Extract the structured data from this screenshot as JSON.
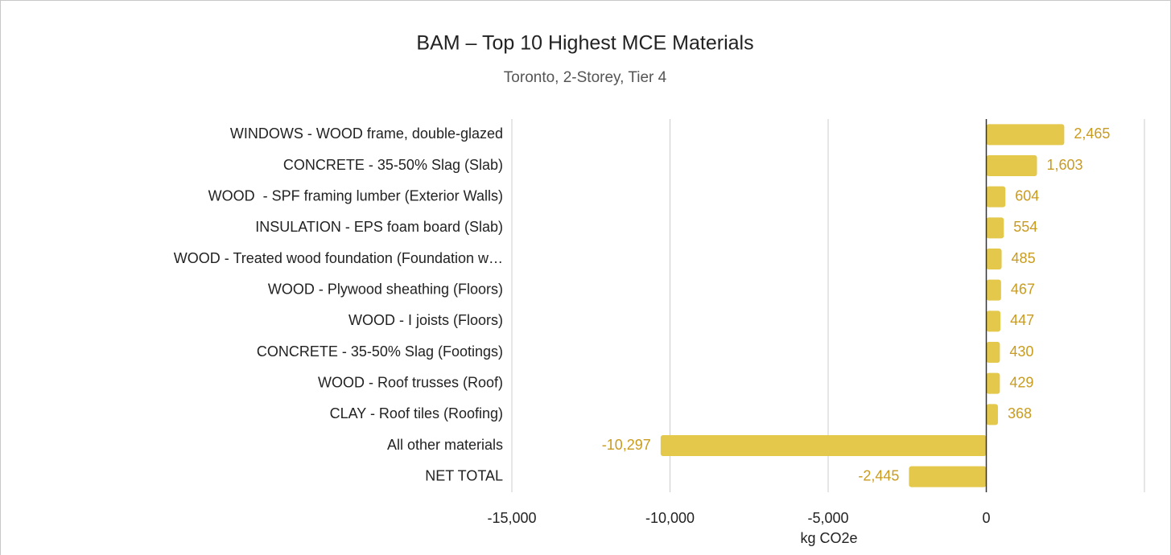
{
  "chart_data": {
    "type": "hbar",
    "title": "BAM – Top 10 Highest MCE Materials",
    "subtitle": "Toronto, 2-Storey, Tier 4",
    "x_label": "kg CO2e",
    "categories": [
      "WINDOWS - WOOD frame, double-glazed",
      "CONCRETE - 35-50% Slag (Slab)",
      "WOOD  - SPF framing lumber (Exterior Walls)",
      "INSULATION - EPS foam board (Slab)",
      "WOOD - Treated wood foundation (Foundation w…",
      "WOOD - Plywood sheathing (Floors)",
      "WOOD - I joists (Floors)",
      "CONCRETE - 35-50% Slag (Footings)",
      "WOOD - Roof trusses (Roof)",
      "CLAY - Roof tiles (Roofing)",
      "All other materials",
      "NET TOTAL"
    ],
    "values": [
      2465,
      1603,
      604,
      554,
      485,
      467,
      447,
      430,
      429,
      368,
      -10297,
      -2445
    ],
    "value_labels": [
      "2,465",
      "1,603",
      "604",
      "554",
      "485",
      "467",
      "447",
      "430",
      "429",
      "368",
      "-10,297",
      "-2,445"
    ],
    "color": "#e3c84b",
    "label_color": "#c99b1f",
    "xlim": [
      -15000,
      5000
    ],
    "xticks": [
      {
        "value": -15000,
        "label": "-15,000"
      },
      {
        "value": -10000,
        "label": "-10,000"
      },
      {
        "value": -5000,
        "label": "-5,000"
      },
      0
    ],
    "grid": true
  }
}
